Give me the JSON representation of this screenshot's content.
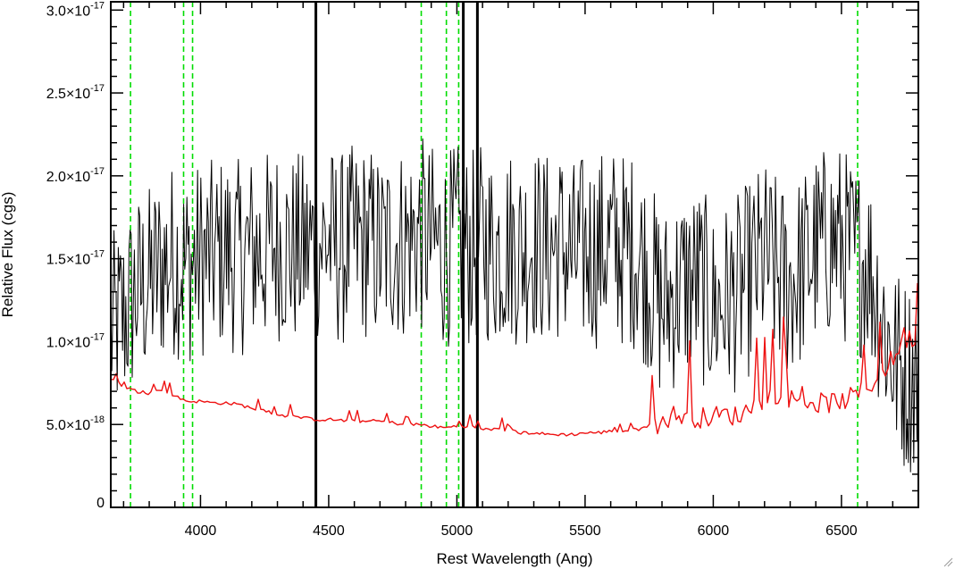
{
  "chart_data": {
    "type": "line",
    "xlabel": "Rest Wavelength (Ang)",
    "ylabel": "Relative Flux (cgs)",
    "xlim": [
      3650,
      6800
    ],
    "ylim": [
      0,
      3.05e-17
    ],
    "x_ticks": [
      {
        "value": 4000,
        "label": "4000"
      },
      {
        "value": 4500,
        "label": "4500"
      },
      {
        "value": 5000,
        "label": "5000"
      },
      {
        "value": 5500,
        "label": "5500"
      },
      {
        "value": 6000,
        "label": "6000"
      },
      {
        "value": 6500,
        "label": "6500"
      }
    ],
    "y_ticks": [
      {
        "value": 0,
        "label": "0",
        "mant": "",
        "exp": ""
      },
      {
        "value": 5e-18,
        "label": "5.0×10-18",
        "mant": "5.0×10",
        "exp": "-18"
      },
      {
        "value": 1e-17,
        "label": "1.0×10-17",
        "mant": "1.0×10",
        "exp": "-17"
      },
      {
        "value": 1.5e-17,
        "label": "1.5×10-17",
        "mant": "1.5×10",
        "exp": "-17"
      },
      {
        "value": 2e-17,
        "label": "2.0×10-17",
        "mant": "2.0×10",
        "exp": "-17"
      },
      {
        "value": 2.5e-17,
        "label": "2.5×10-17",
        "mant": "2.5×10",
        "exp": "-17"
      },
      {
        "value": 3e-17,
        "label": "3.0×10-17",
        "mant": "3.0×10",
        "exp": "-17"
      }
    ],
    "series": [
      {
        "color": "#000000",
        "x": [
          3650,
          3700,
          3750,
          3800,
          3850,
          3900,
          3950,
          4000,
          4050,
          4100,
          4150,
          4200,
          4250,
          4300,
          4350,
          4400,
          4450,
          4500,
          4550,
          4600,
          4650,
          4700,
          4750,
          4800,
          4850,
          4900,
          4950,
          5000,
          5050,
          5100,
          5150,
          5200,
          5250,
          5300,
          5350,
          5400,
          5450,
          5500,
          5550,
          5600,
          5650,
          5700,
          5750,
          5800,
          5850,
          5900,
          5950,
          6000,
          6050,
          6100,
          6150,
          6200,
          6250,
          6300,
          6350,
          6400,
          6450,
          6500,
          6550,
          6600,
          6650,
          6700,
          6750,
          6800
        ],
        "values": [
          1.05e-17,
          1.15e-17,
          1.3e-17,
          1.35e-17,
          1.45e-17,
          1.5e-17,
          1.45e-17,
          1.5e-17,
          1.5e-17,
          1.55e-17,
          1.5e-17,
          1.55e-17,
          1.55e-17,
          1.6e-17,
          1.55e-17,
          1.55e-17,
          1.6e-17,
          1.6e-17,
          1.55e-17,
          1.6e-17,
          1.6e-17,
          1.55e-17,
          1.6e-17,
          1.6e-17,
          1.65e-17,
          1.6e-17,
          1.55e-17,
          1.6e-17,
          1.55e-17,
          1.6e-17,
          1.55e-17,
          1.6e-17,
          1.55e-17,
          1.6e-17,
          1.55e-17,
          1.6e-17,
          1.5e-17,
          1.55e-17,
          1.55e-17,
          1.6e-17,
          1.55e-17,
          1.55e-17,
          1.4e-17,
          1.2e-17,
          1.3e-17,
          1.35e-17,
          1.35e-17,
          1.2e-17,
          1.25e-17,
          1.3e-17,
          1.4e-17,
          1.5e-17,
          1.4e-17,
          1.35e-17,
          1.45e-17,
          1.55e-17,
          1.6e-17,
          1.6e-17,
          1.5e-17,
          1.5e-17,
          1.2e-17,
          9e-18,
          8e-18,
          8e-18
        ]
      },
      {
        "color": "#ee1111",
        "x": [
          3650,
          3700,
          3750,
          3800,
          3850,
          3900,
          3950,
          4000,
          4050,
          4100,
          4150,
          4200,
          4250,
          4300,
          4350,
          4400,
          4450,
          4500,
          4550,
          4600,
          4650,
          4700,
          4750,
          4800,
          4850,
          4900,
          4950,
          5000,
          5050,
          5100,
          5150,
          5200,
          5250,
          5300,
          5350,
          5400,
          5450,
          5500,
          5550,
          5600,
          5650,
          5700,
          5750,
          5800,
          5850,
          5900,
          5950,
          6000,
          6050,
          6100,
          6150,
          6200,
          6250,
          6300,
          6350,
          6400,
          6450,
          6500,
          6550,
          6600,
          6650,
          6700,
          6750,
          6800
        ],
        "values": [
          7.8e-18,
          7.3e-18,
          7e-18,
          6.9e-18,
          7.1e-18,
          6.7e-18,
          6.4e-18,
          6.4e-18,
          6.3e-18,
          6.3e-18,
          6.2e-18,
          6e-18,
          5.8e-18,
          5.6e-18,
          5.5e-18,
          5.4e-18,
          5.3e-18,
          5.3e-18,
          5.25e-18,
          5.2e-18,
          5.2e-18,
          5.2e-18,
          5.1e-18,
          5e-18,
          5e-18,
          4.9e-18,
          4.8e-18,
          4.9e-18,
          4.9e-18,
          4.7e-18,
          4.7e-18,
          4.6e-18,
          4.5e-18,
          4.5e-18,
          4.4e-18,
          4.4e-18,
          4.4e-18,
          4.5e-18,
          4.5e-18,
          4.6e-18,
          4.6e-18,
          4.7e-18,
          4.8e-18,
          5.2e-18,
          5.6e-18,
          5.5e-18,
          5.4e-18,
          5.5e-18,
          5.6e-18,
          5.5e-18,
          6.1e-18,
          6.6e-18,
          6.9e-18,
          6.6e-18,
          6.4e-18,
          6.3e-18,
          6.3e-18,
          6.4e-18,
          6.7e-18,
          7.2e-18,
          8e-18,
          9e-18,
          1e-17,
          1.05e-17
        ]
      }
    ],
    "vertical_lines": [
      {
        "color": "#00dd00",
        "style": "dashed",
        "x": [
          3727,
          3934,
          3969,
          4861,
          4959,
          5007,
          6563
        ]
      },
      {
        "color": "#000000",
        "style": "solid",
        "x": [
          4450,
          5025,
          5080
        ]
      }
    ]
  }
}
